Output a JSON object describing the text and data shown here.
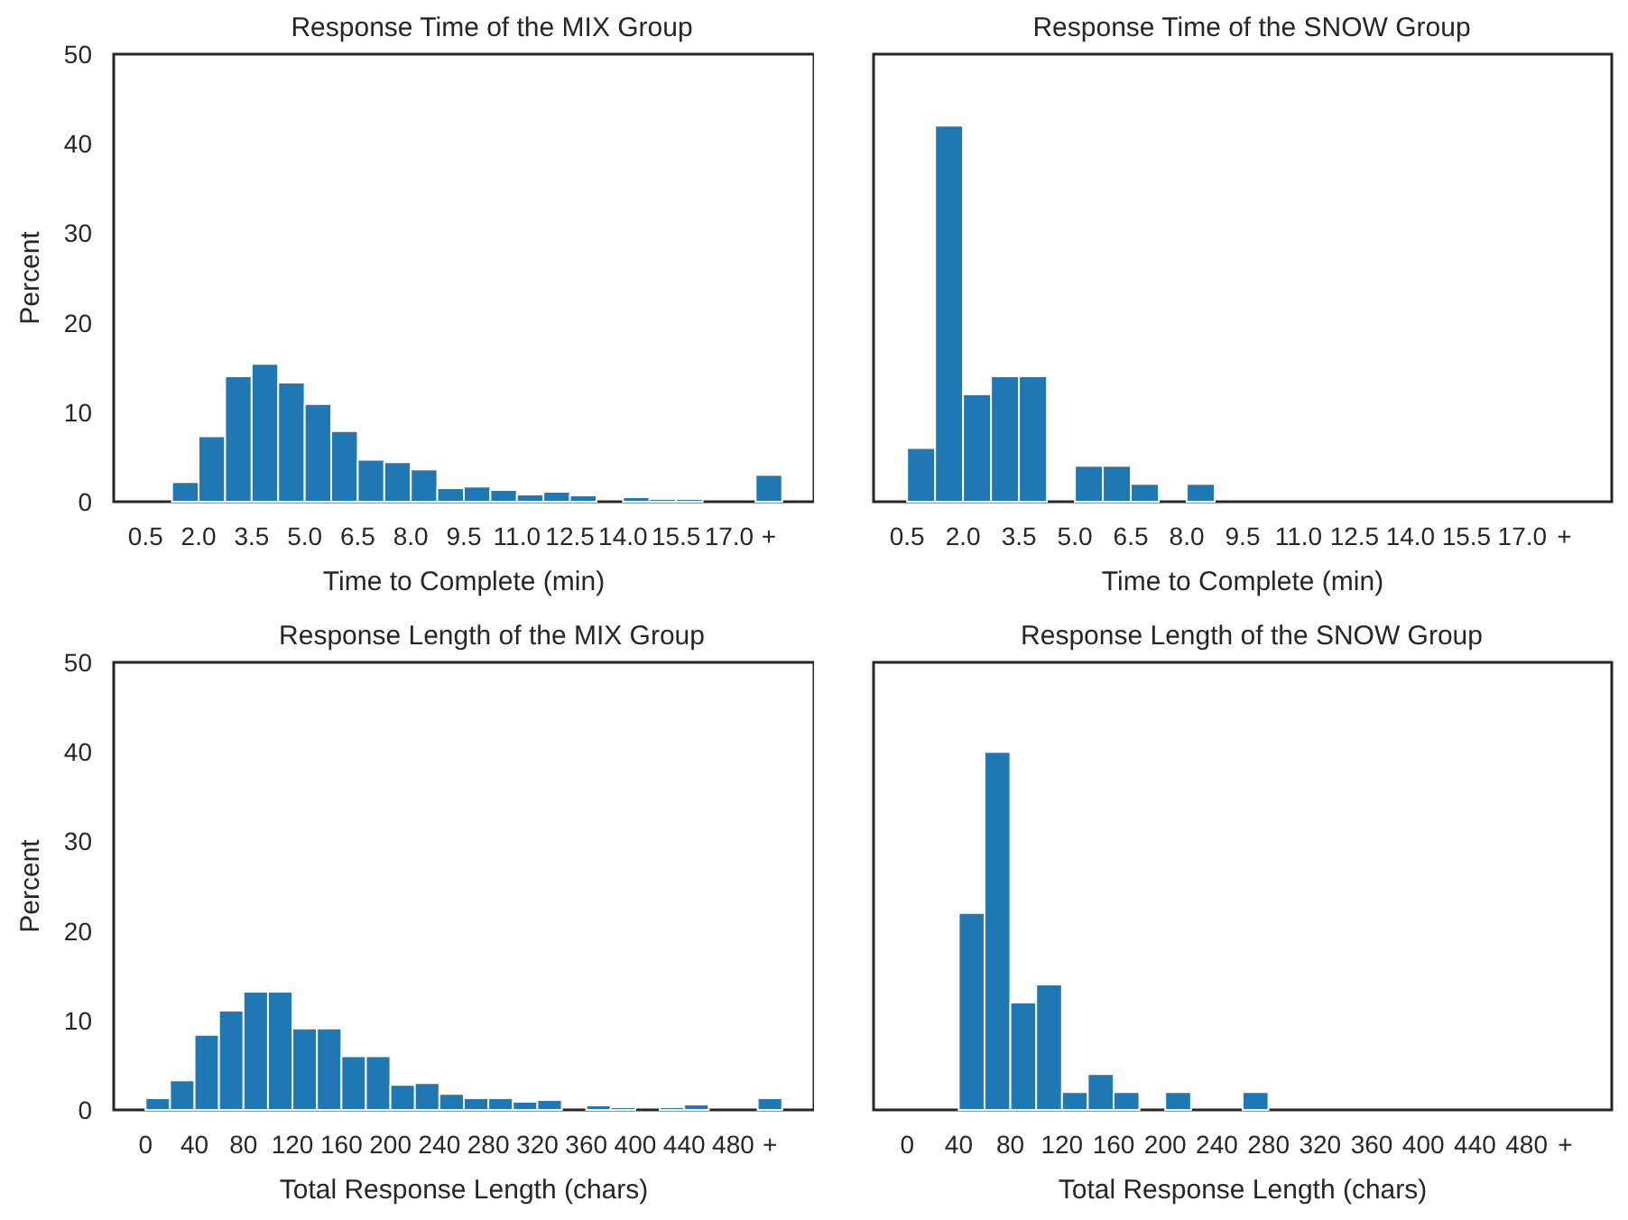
{
  "chart_data": [
    {
      "type": "histogram",
      "title": "Response Time of the MIX Group",
      "xlabel": "Time to Complete (min)",
      "ylabel": "Percent",
      "color": "#1f77b4",
      "bins": [
        0.5,
        1.25,
        2.0,
        2.75,
        3.5,
        4.25,
        5.0,
        5.75,
        6.5,
        7.25,
        8.0,
        8.75,
        9.5,
        10.25,
        11.0,
        11.75,
        12.5,
        13.25,
        14.0,
        14.75,
        15.5,
        16.25,
        17.0,
        17.75,
        18.5
      ],
      "values": [
        0,
        2.2,
        7.3,
        14.0,
        15.4,
        13.3,
        10.9,
        7.9,
        4.7,
        4.4,
        3.6,
        1.5,
        1.7,
        1.3,
        0.8,
        1.1,
        0.7,
        0,
        0.5,
        0.3,
        0.3,
        0,
        0,
        3.0
      ],
      "xlim": [
        -0.4,
        19.4
      ],
      "xticks": [
        0.5,
        {
          "value": 2,
          "label": "2.0"
        },
        3.5,
        {
          "value": 5,
          "label": "5.0"
        },
        6.5,
        {
          "value": 8,
          "label": "8.0"
        },
        9.5,
        {
          "value": 11,
          "label": "11.0"
        },
        12.5,
        {
          "value": 14,
          "label": "14.0"
        },
        15.5,
        {
          "value": 17,
          "label": "17.0"
        },
        {
          "value": 18.125,
          "label": "+"
        }
      ],
      "ylim": [
        0,
        50
      ],
      "yticks": [
        0,
        10,
        20,
        30,
        40,
        50
      ]
    },
    {
      "type": "histogram",
      "title": "Response Time of the SNOW Group",
      "xlabel": "Time to Complete (min)",
      "color": "#1f77b4",
      "tick_labels": "x",
      "bins": [
        0.5,
        1.25,
        2.0,
        2.75,
        3.5,
        4.25,
        5.0,
        5.75,
        6.5,
        7.25,
        8.0,
        8.75,
        9.5,
        10.25,
        11.0,
        11.75,
        12.5,
        13.25,
        14.0,
        14.75,
        15.5,
        16.25,
        17.0,
        17.75,
        18.5
      ],
      "values": [
        6,
        42,
        12,
        14,
        14,
        0,
        4,
        4,
        2,
        0,
        2,
        0,
        0,
        0,
        0,
        0,
        0,
        0,
        0,
        0,
        0,
        0,
        0,
        0
      ],
      "xlim": [
        -0.4,
        19.4
      ],
      "xticks": [
        0.5,
        {
          "value": 2,
          "label": "2.0"
        },
        3.5,
        {
          "value": 5,
          "label": "5.0"
        },
        6.5,
        {
          "value": 8,
          "label": "8.0"
        },
        9.5,
        {
          "value": 11,
          "label": "11.0"
        },
        12.5,
        {
          "value": 14,
          "label": "14.0"
        },
        15.5,
        {
          "value": 17,
          "label": "17.0"
        },
        {
          "value": 18.125,
          "label": "+"
        }
      ],
      "ylim": [
        0,
        50
      ],
      "yticks": [
        0,
        10,
        20,
        30,
        40,
        50
      ]
    },
    {
      "type": "histogram",
      "title": "Response Length of the MIX Group",
      "xlabel": "Total Response Length (chars)",
      "ylabel": "Percent",
      "color": "#1f77b4",
      "bins": [
        0,
        20,
        40,
        60,
        80,
        100,
        120,
        140,
        160,
        180,
        200,
        220,
        240,
        260,
        280,
        300,
        320,
        340,
        360,
        380,
        400,
        420,
        440,
        460,
        480,
        500,
        520
      ],
      "values": [
        1.3,
        3.3,
        8.4,
        11.1,
        13.2,
        13.2,
        9.1,
        9.1,
        6.0,
        6.0,
        2.8,
        3.0,
        1.8,
        1.3,
        1.3,
        0.9,
        1.1,
        0,
        0.5,
        0.3,
        0,
        0.3,
        0.6,
        0,
        0,
        1.3
      ],
      "xlim": [
        -26,
        546
      ],
      "xticks": [
        0,
        40,
        80,
        120,
        160,
        200,
        240,
        280,
        320,
        360,
        400,
        440,
        480,
        {
          "value": 510,
          "label": "+"
        }
      ],
      "ylim": [
        0,
        50
      ],
      "yticks": [
        0,
        10,
        20,
        30,
        40,
        50
      ]
    },
    {
      "type": "histogram",
      "title": "Response Length of the SNOW Group",
      "xlabel": "Total Response Length (chars)",
      "color": "#1f77b4",
      "tick_labels": "x",
      "bins": [
        0,
        20,
        40,
        60,
        80,
        100,
        120,
        140,
        160,
        180,
        200,
        220,
        240,
        260,
        280,
        300,
        320,
        340,
        360,
        380,
        400,
        420,
        440,
        460,
        480,
        500,
        520
      ],
      "values": [
        0,
        0,
        22,
        40,
        12,
        14,
        2,
        4,
        2,
        0,
        2,
        0,
        0,
        2,
        0,
        0,
        0,
        0,
        0,
        0,
        0,
        0,
        0,
        0,
        0,
        0
      ],
      "xlim": [
        -26,
        546
      ],
      "xticks": [
        0,
        40,
        80,
        120,
        160,
        200,
        240,
        280,
        320,
        360,
        400,
        440,
        480,
        {
          "value": 510,
          "label": "+"
        }
      ],
      "ylim": [
        0,
        50
      ],
      "yticks": [
        0,
        10,
        20,
        30,
        40,
        50
      ]
    }
  ]
}
